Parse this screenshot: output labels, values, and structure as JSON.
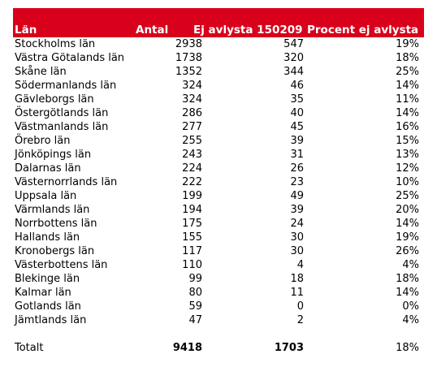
{
  "headers": {
    "lan": "Län",
    "antal": "Antal",
    "ej_avlysta": "Ej avlysta 150209",
    "procent": "Procent ej avlysta"
  },
  "rows": [
    {
      "lan": "Stockholms län",
      "antal": "2938",
      "ej": "547",
      "pct": "19%"
    },
    {
      "lan": "Västra Götalands län",
      "antal": "1738",
      "ej": "320",
      "pct": "18%"
    },
    {
      "lan": "Skåne län",
      "antal": "1352",
      "ej": "344",
      "pct": "25%"
    },
    {
      "lan": "Södermanlands län",
      "antal": "324",
      "ej": "46",
      "pct": "14%"
    },
    {
      "lan": "Gävleborgs län",
      "antal": "324",
      "ej": "35",
      "pct": "11%"
    },
    {
      "lan": "Östergötlands län",
      "antal": "286",
      "ej": "40",
      "pct": "14%"
    },
    {
      "lan": "Västmanlands län",
      "antal": "277",
      "ej": "45",
      "pct": "16%"
    },
    {
      "lan": "Örebro län",
      "antal": "255",
      "ej": "39",
      "pct": "15%"
    },
    {
      "lan": "Jönköpings län",
      "antal": "243",
      "ej": "31",
      "pct": "13%"
    },
    {
      "lan": "Dalarnas län",
      "antal": "224",
      "ej": "26",
      "pct": "12%"
    },
    {
      "lan": "Västernorrlands län",
      "antal": "222",
      "ej": "23",
      "pct": "10%"
    },
    {
      "lan": "Uppsala län",
      "antal": "199",
      "ej": "49",
      "pct": "25%"
    },
    {
      "lan": "Värmlands län",
      "antal": "194",
      "ej": "39",
      "pct": "20%"
    },
    {
      "lan": "Norrbottens län",
      "antal": "175",
      "ej": "24",
      "pct": "14%"
    },
    {
      "lan": "Hallands län",
      "antal": "155",
      "ej": "30",
      "pct": "19%"
    },
    {
      "lan": "Kronobergs län",
      "antal": "117",
      "ej": "30",
      "pct": "26%"
    },
    {
      "lan": "Västerbottens län",
      "antal": "110",
      "ej": "4",
      "pct": "4%"
    },
    {
      "lan": "Blekinge län",
      "antal": "99",
      "ej": "18",
      "pct": "18%"
    },
    {
      "lan": "Kalmar län",
      "antal": "80",
      "ej": "11",
      "pct": "14%"
    },
    {
      "lan": "Gotlands län",
      "antal": "59",
      "ej": "0",
      "pct": "0%"
    },
    {
      "lan": "Jämtlands län",
      "antal": "47",
      "ej": "2",
      "pct": "4%"
    }
  ],
  "total": {
    "label": "Totalt",
    "antal": "9418",
    "ej": "1703",
    "pct": "18%"
  },
  "colors": {
    "header_bg": "#d9001b",
    "header_text": "#ffffff"
  }
}
